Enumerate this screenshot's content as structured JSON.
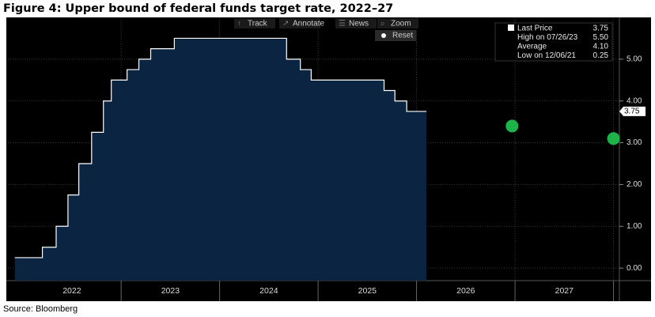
{
  "chart_data": {
    "type": "line",
    "title": "Figure 4: Upper bound of federal funds target rate, 2022–27",
    "series": [
      {
        "type": "step",
        "color": "#ffffff",
        "fill": "#0b2442",
        "x": [
          2021.92,
          2022.2,
          2022.34,
          2022.46,
          2022.57,
          2022.7,
          2022.82,
          2022.9,
          2023.06,
          2023.18,
          2023.3,
          2023.54,
          2024.68,
          2024.82,
          2024.93,
          2025.67,
          2025.78,
          2025.9,
          2026.1
        ],
        "values": [
          0.25,
          0.5,
          1.0,
          1.75,
          2.5,
          3.25,
          4.0,
          4.5,
          4.75,
          5.0,
          5.25,
          5.5,
          5.0,
          4.75,
          4.5,
          4.25,
          4.0,
          3.75,
          3.75
        ]
      },
      {
        "type": "scatter",
        "color": "#1db34a",
        "x": [
          2026.97,
          2028.0
        ],
        "values": [
          3.4,
          3.1
        ]
      }
    ],
    "last_value_label": "3.75",
    "xlim": [
      2021.85,
      2028.06
    ],
    "xticks": [
      {
        "value": 2022.5,
        "label": "2022"
      },
      {
        "value": 2023.5,
        "label": "2023"
      },
      {
        "value": 2024.5,
        "label": "2024"
      },
      {
        "value": 2025.5,
        "label": "2025"
      },
      {
        "value": 2026.5,
        "label": "2026"
      },
      {
        "value": 2027.5,
        "label": "2027"
      }
    ],
    "ylim": [
      -0.3,
      6.0
    ],
    "yticks": [
      {
        "value": 0,
        "label": "0.00"
      },
      {
        "value": 1,
        "label": "1.00"
      },
      {
        "value": 2,
        "label": "2.00"
      },
      {
        "value": 3,
        "label": "3.00"
      },
      {
        "value": 4,
        "label": "4.00"
      },
      {
        "value": 5,
        "label": "5.00"
      }
    ],
    "grid": true,
    "stats": [
      {
        "label": "Last Price",
        "value": "3.75"
      },
      {
        "label": "High on 07/26/23",
        "value": "5.50"
      },
      {
        "label": "Average",
        "value": "4.10"
      },
      {
        "label": "Low on 12/06/21",
        "value": "0.25"
      }
    ]
  },
  "toolbar": [
    "Track",
    "Annotate",
    "News",
    "Zoom",
    "Reset"
  ],
  "source": "Source: Bloomberg"
}
